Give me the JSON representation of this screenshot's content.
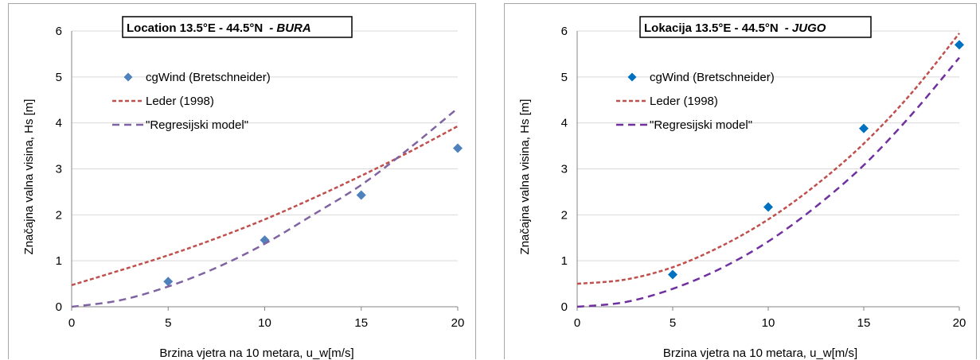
{
  "chart_data": [
    {
      "type": "scatter",
      "title": "Location 13.5°E - 44.5°N",
      "title_suffix": "- BURA",
      "xlabel": "Brzina vjetra na 10 metara, u_w[m/s]",
      "ylabel": "Značajna valna visina, Hs [m]",
      "xlim": [
        0,
        20
      ],
      "ylim": [
        0,
        6
      ],
      "xticks": [
        "0",
        "5",
        "10",
        "15",
        "20"
      ],
      "yticks": [
        "0",
        "1",
        "2",
        "3",
        "4",
        "5",
        "6"
      ],
      "grid": "horizontal",
      "legend_position": "top-left",
      "series": [
        {
          "name": "cgWind (Bretschneider)",
          "kind": "markers",
          "color": "#4f81bd",
          "x": [
            5,
            10,
            15,
            20
          ],
          "y": [
            0.55,
            1.45,
            2.43,
            3.45
          ]
        },
        {
          "name": "Leder (1998)",
          "kind": "dashed-line",
          "color": "#c0504d",
          "x": [
            0,
            2.5,
            5,
            7.5,
            10,
            12.5,
            15,
            17.5,
            20
          ],
          "y": [
            0.47,
            0.79,
            1.12,
            1.49,
            1.9,
            2.36,
            2.85,
            3.37,
            3.93
          ]
        },
        {
          "name": "\"Regresijski model\"",
          "kind": "dashed-line",
          "color": "#8064a2",
          "x": [
            0,
            2.5,
            5,
            7.5,
            10,
            12.5,
            15,
            17.5,
            20
          ],
          "y": [
            0.0,
            0.14,
            0.44,
            0.85,
            1.37,
            2.0,
            2.65,
            3.45,
            4.32
          ]
        }
      ]
    },
    {
      "type": "scatter",
      "title": "Lokacija 13.5°E - 44.5°N",
      "title_suffix": "- JUGO",
      "xlabel": "Brzina vjetra na 10 metara, u_w[m/s]",
      "ylabel": "Značajna valna visina, Hs [m]",
      "xlim": [
        0,
        20
      ],
      "ylim": [
        0,
        6
      ],
      "xticks": [
        "0",
        "5",
        "10",
        "15",
        "20"
      ],
      "yticks": [
        "0",
        "1",
        "2",
        "3",
        "4",
        "5",
        "6"
      ],
      "grid": "horizontal",
      "legend_position": "top-left",
      "series": [
        {
          "name": "cgWind (Bretschneider)",
          "kind": "markers",
          "color": "#0070c0",
          "x": [
            5,
            10,
            15,
            20
          ],
          "y": [
            0.7,
            2.17,
            3.88,
            5.7
          ]
        },
        {
          "name": "Leder (1998)",
          "kind": "dashed-line",
          "color": "#c0504d",
          "x": [
            0,
            2.5,
            5,
            7.5,
            10,
            12.5,
            15,
            17.5,
            20
          ],
          "y": [
            0.5,
            0.59,
            0.86,
            1.31,
            1.9,
            2.65,
            3.55,
            4.65,
            5.95
          ]
        },
        {
          "name": "\"Regresijski model\"",
          "kind": "dashed-line",
          "color": "#7030a0",
          "x": [
            0,
            2.5,
            5,
            7.5,
            10,
            12.5,
            15,
            17.5,
            20
          ],
          "y": [
            0.0,
            0.1,
            0.39,
            0.83,
            1.42,
            2.18,
            3.08,
            4.18,
            5.42
          ]
        }
      ]
    }
  ]
}
